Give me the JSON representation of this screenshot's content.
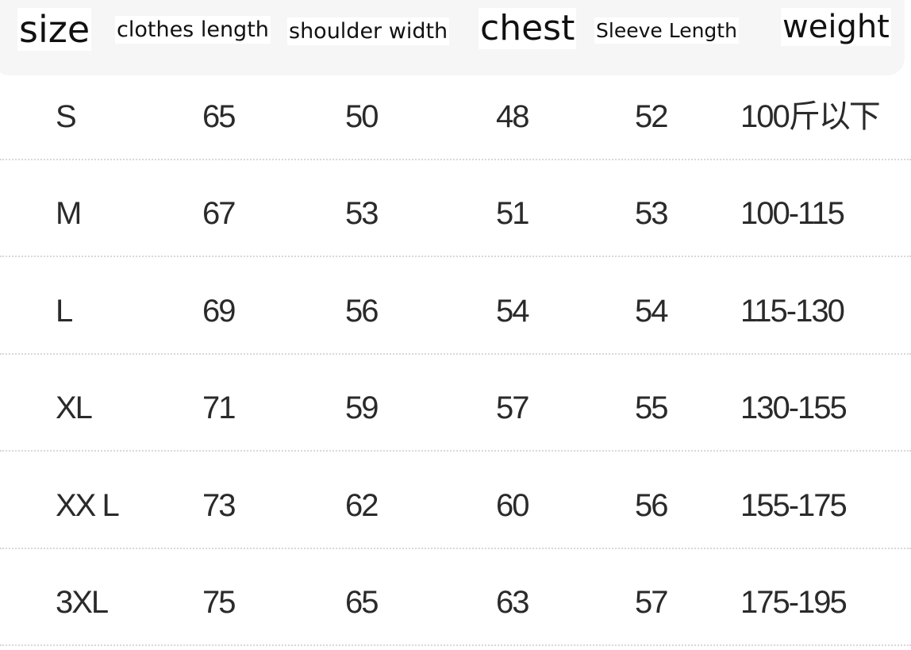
{
  "table": {
    "header": [
      "size",
      "clothes length",
      "shoulder width",
      "chest",
      "Sleeve Length",
      "weight"
    ],
    "rows": [
      [
        "S",
        "65",
        "50",
        "48",
        "52",
        "100斤以下"
      ],
      [
        "M",
        "67",
        "53",
        "51",
        "53",
        "100-115"
      ],
      [
        "L",
        "69",
        "56",
        "54",
        "54",
        "115-130"
      ],
      [
        "XL",
        "71",
        "59",
        "57",
        "55",
        "130-155"
      ],
      [
        "XX L",
        "73",
        "62",
        "60",
        "56",
        "155-175"
      ],
      [
        "3XL",
        "75",
        "65",
        "63",
        "57",
        "175-195"
      ]
    ]
  }
}
